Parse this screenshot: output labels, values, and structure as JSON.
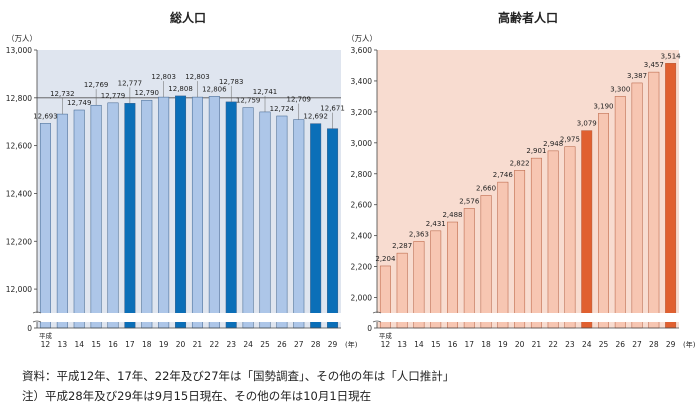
{
  "chart_data": [
    {
      "type": "bar",
      "title": "総人口",
      "unit": "（万人）",
      "era_label": "平成",
      "x_unit": "(年)",
      "categories": [
        "12",
        "13",
        "14",
        "15",
        "16",
        "17",
        "18",
        "19",
        "20",
        "21",
        "22",
        "23",
        "24",
        "25",
        "26",
        "27",
        "28",
        "29"
      ],
      "values": [
        12693,
        12732,
        12749,
        12769,
        12779,
        12777,
        12790,
        12803,
        12808,
        12803,
        12806,
        12783,
        12759,
        12741,
        12724,
        12709,
        12692,
        12671
      ],
      "value_labels": [
        "12,693",
        "12,732",
        "12,749",
        "12,769",
        "12,779",
        "12,777",
        "12,790",
        "12,803",
        "12,808",
        "12,803",
        "12,806",
        "12,783",
        "12,759",
        "12,741",
        "12,724",
        "12,709",
        "12,692",
        "12,671"
      ],
      "highlight_categories": [
        "17",
        "20",
        "23",
        "28",
        "29"
      ],
      "ylim": [
        11900,
        13000
      ],
      "yticks": [
        12000,
        12200,
        12400,
        12600,
        12800,
        13000
      ],
      "ytick_labels": [
        "12,000",
        "12,200",
        "12,400",
        "12,600",
        "12,800",
        "13,000"
      ],
      "y_zero_label": "0",
      "reference_line": 12800,
      "grid": false,
      "colors": {
        "normal": "#adc6e8",
        "highlight": "#0b6fb8",
        "edge": "#3a5f8a",
        "plot_bg": "#dfe5ef"
      }
    },
    {
      "type": "bar",
      "title": "高齢者人口",
      "unit": "（万人）",
      "era_label": "平成",
      "x_unit": "(年)",
      "categories": [
        "12",
        "13",
        "14",
        "15",
        "16",
        "17",
        "18",
        "19",
        "20",
        "21",
        "22",
        "23",
        "24",
        "25",
        "26",
        "27",
        "28",
        "29"
      ],
      "values": [
        2204,
        2287,
        2363,
        2431,
        2488,
        2576,
        2660,
        2746,
        2822,
        2901,
        2948,
        2975,
        3079,
        3190,
        3300,
        3387,
        3457,
        3514
      ],
      "value_labels": [
        "2,204",
        "2,287",
        "2,363",
        "2,431",
        "2,488",
        "2,576",
        "2,660",
        "2,746",
        "2,822",
        "2,901",
        "2,948",
        "2,975",
        "3,079",
        "3,190",
        "3,300",
        "3,387",
        "3,457",
        "3,514"
      ],
      "highlight_categories": [
        "24",
        "29"
      ],
      "ylim": [
        1900,
        3600
      ],
      "yticks": [
        2000,
        2200,
        2400,
        2600,
        2800,
        3000,
        3200,
        3400,
        3600
      ],
      "ytick_labels": [
        "2,000",
        "2,200",
        "2,400",
        "2,600",
        "2,800",
        "3,000",
        "3,200",
        "3,400",
        "3,600"
      ],
      "y_zero_label": "0",
      "grid": false,
      "colors": {
        "normal": "#f7c6b2",
        "highlight": "#e06030",
        "edge": "#b35a3a",
        "plot_bg": "#f8dcd0"
      }
    }
  ],
  "notes": {
    "source": "資料：平成12年、17年、22年及び27年は「国勢調査」、その他の年は「人口推計」",
    "footnote": "注）平成28年及び29年は9月15日現在、その他の年は10月1日現在"
  }
}
